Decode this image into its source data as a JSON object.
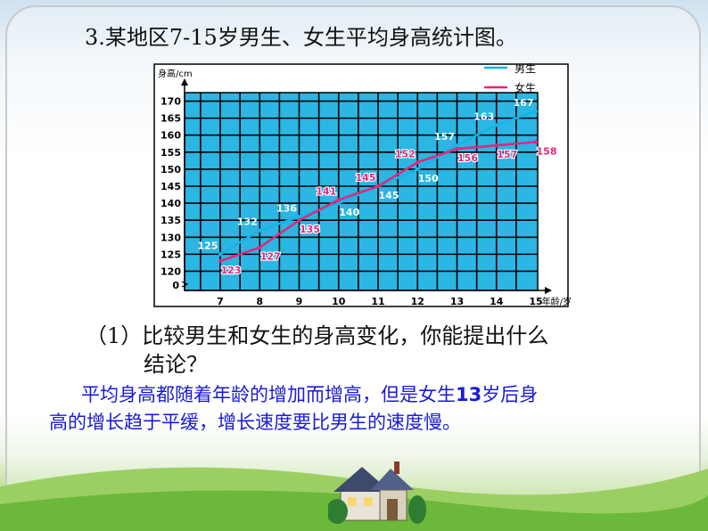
{
  "title": "3.某地区7-15岁男生、女生平均身高统计图。",
  "question": {
    "line1": "（1）比较男生和女生的身高变化，你能提出什么",
    "line2": "结论？"
  },
  "answer": {
    "part1": "平均身高都随着年龄的增加而增高，但是女生",
    "bold": "13",
    "part2": "岁后身",
    "line2": "高的增长趋于平缓，增长速度要比男生的速度慢。"
  },
  "chart_data": {
    "type": "line",
    "ylabel": "身高/cm",
    "xlabel": "年龄/岁",
    "x": [
      7,
      8,
      9,
      10,
      11,
      12,
      13,
      14,
      15
    ],
    "y_ticks": [
      120,
      125,
      130,
      135,
      140,
      145,
      150,
      155,
      160,
      165,
      170
    ],
    "y_zero": 0,
    "ylim": [
      120,
      170
    ],
    "grid": true,
    "legend": "top-right",
    "background": "#2bb6e3",
    "series": [
      {
        "name": "男生",
        "color": "#14b4e6",
        "values": [
          125,
          132,
          136,
          140,
          145,
          150,
          157,
          163,
          167
        ]
      },
      {
        "name": "女生",
        "color": "#e0287d",
        "values": [
          123,
          127,
          135,
          141,
          145,
          152,
          156,
          157,
          158
        ]
      }
    ]
  }
}
